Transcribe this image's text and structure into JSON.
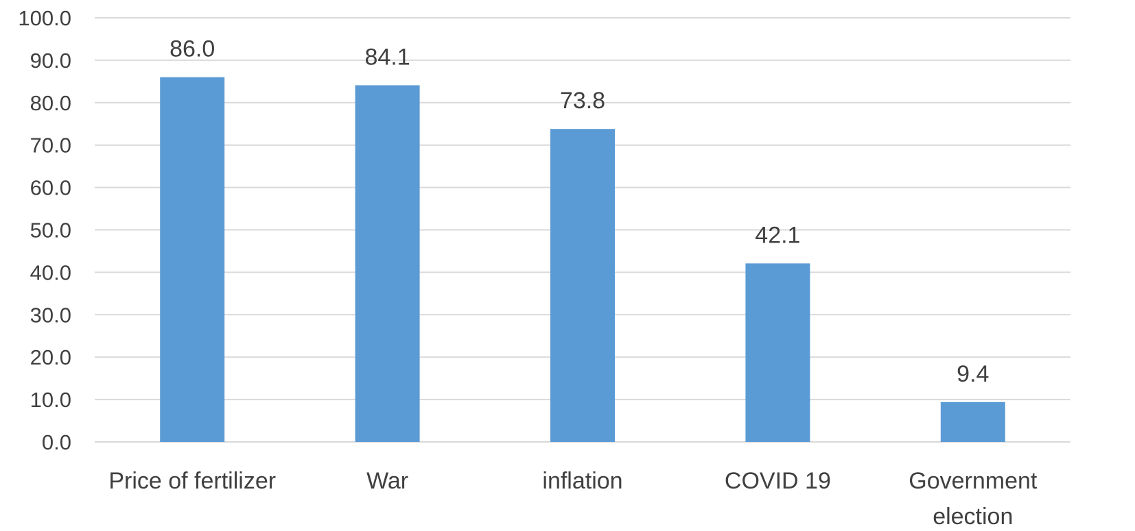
{
  "chart_data": {
    "type": "bar",
    "categories": [
      [
        "Price of fertilizer"
      ],
      [
        "War"
      ],
      [
        "inflation"
      ],
      [
        "COVID 19"
      ],
      [
        "Government",
        "election"
      ]
    ],
    "values": [
      86.0,
      84.1,
      73.8,
      42.1,
      9.4
    ],
    "data_labels": [
      "86.0",
      "84.1",
      "73.8",
      "42.1",
      "9.4"
    ],
    "title": "",
    "xlabel": "",
    "ylabel": "",
    "ylim": [
      0,
      100
    ],
    "yticks": [
      0,
      10,
      20,
      30,
      40,
      50,
      60,
      70,
      80,
      90,
      100
    ],
    "ytick_labels": [
      "0.0",
      "10.0",
      "20.0",
      "30.0",
      "40.0",
      "50.0",
      "60.0",
      "70.0",
      "80.0",
      "90.0",
      "100.0"
    ],
    "grid": true,
    "legend": "none",
    "colors": {
      "bar": "#5b9bd5",
      "grid": "#d9d9d9",
      "text": "#404040"
    }
  }
}
